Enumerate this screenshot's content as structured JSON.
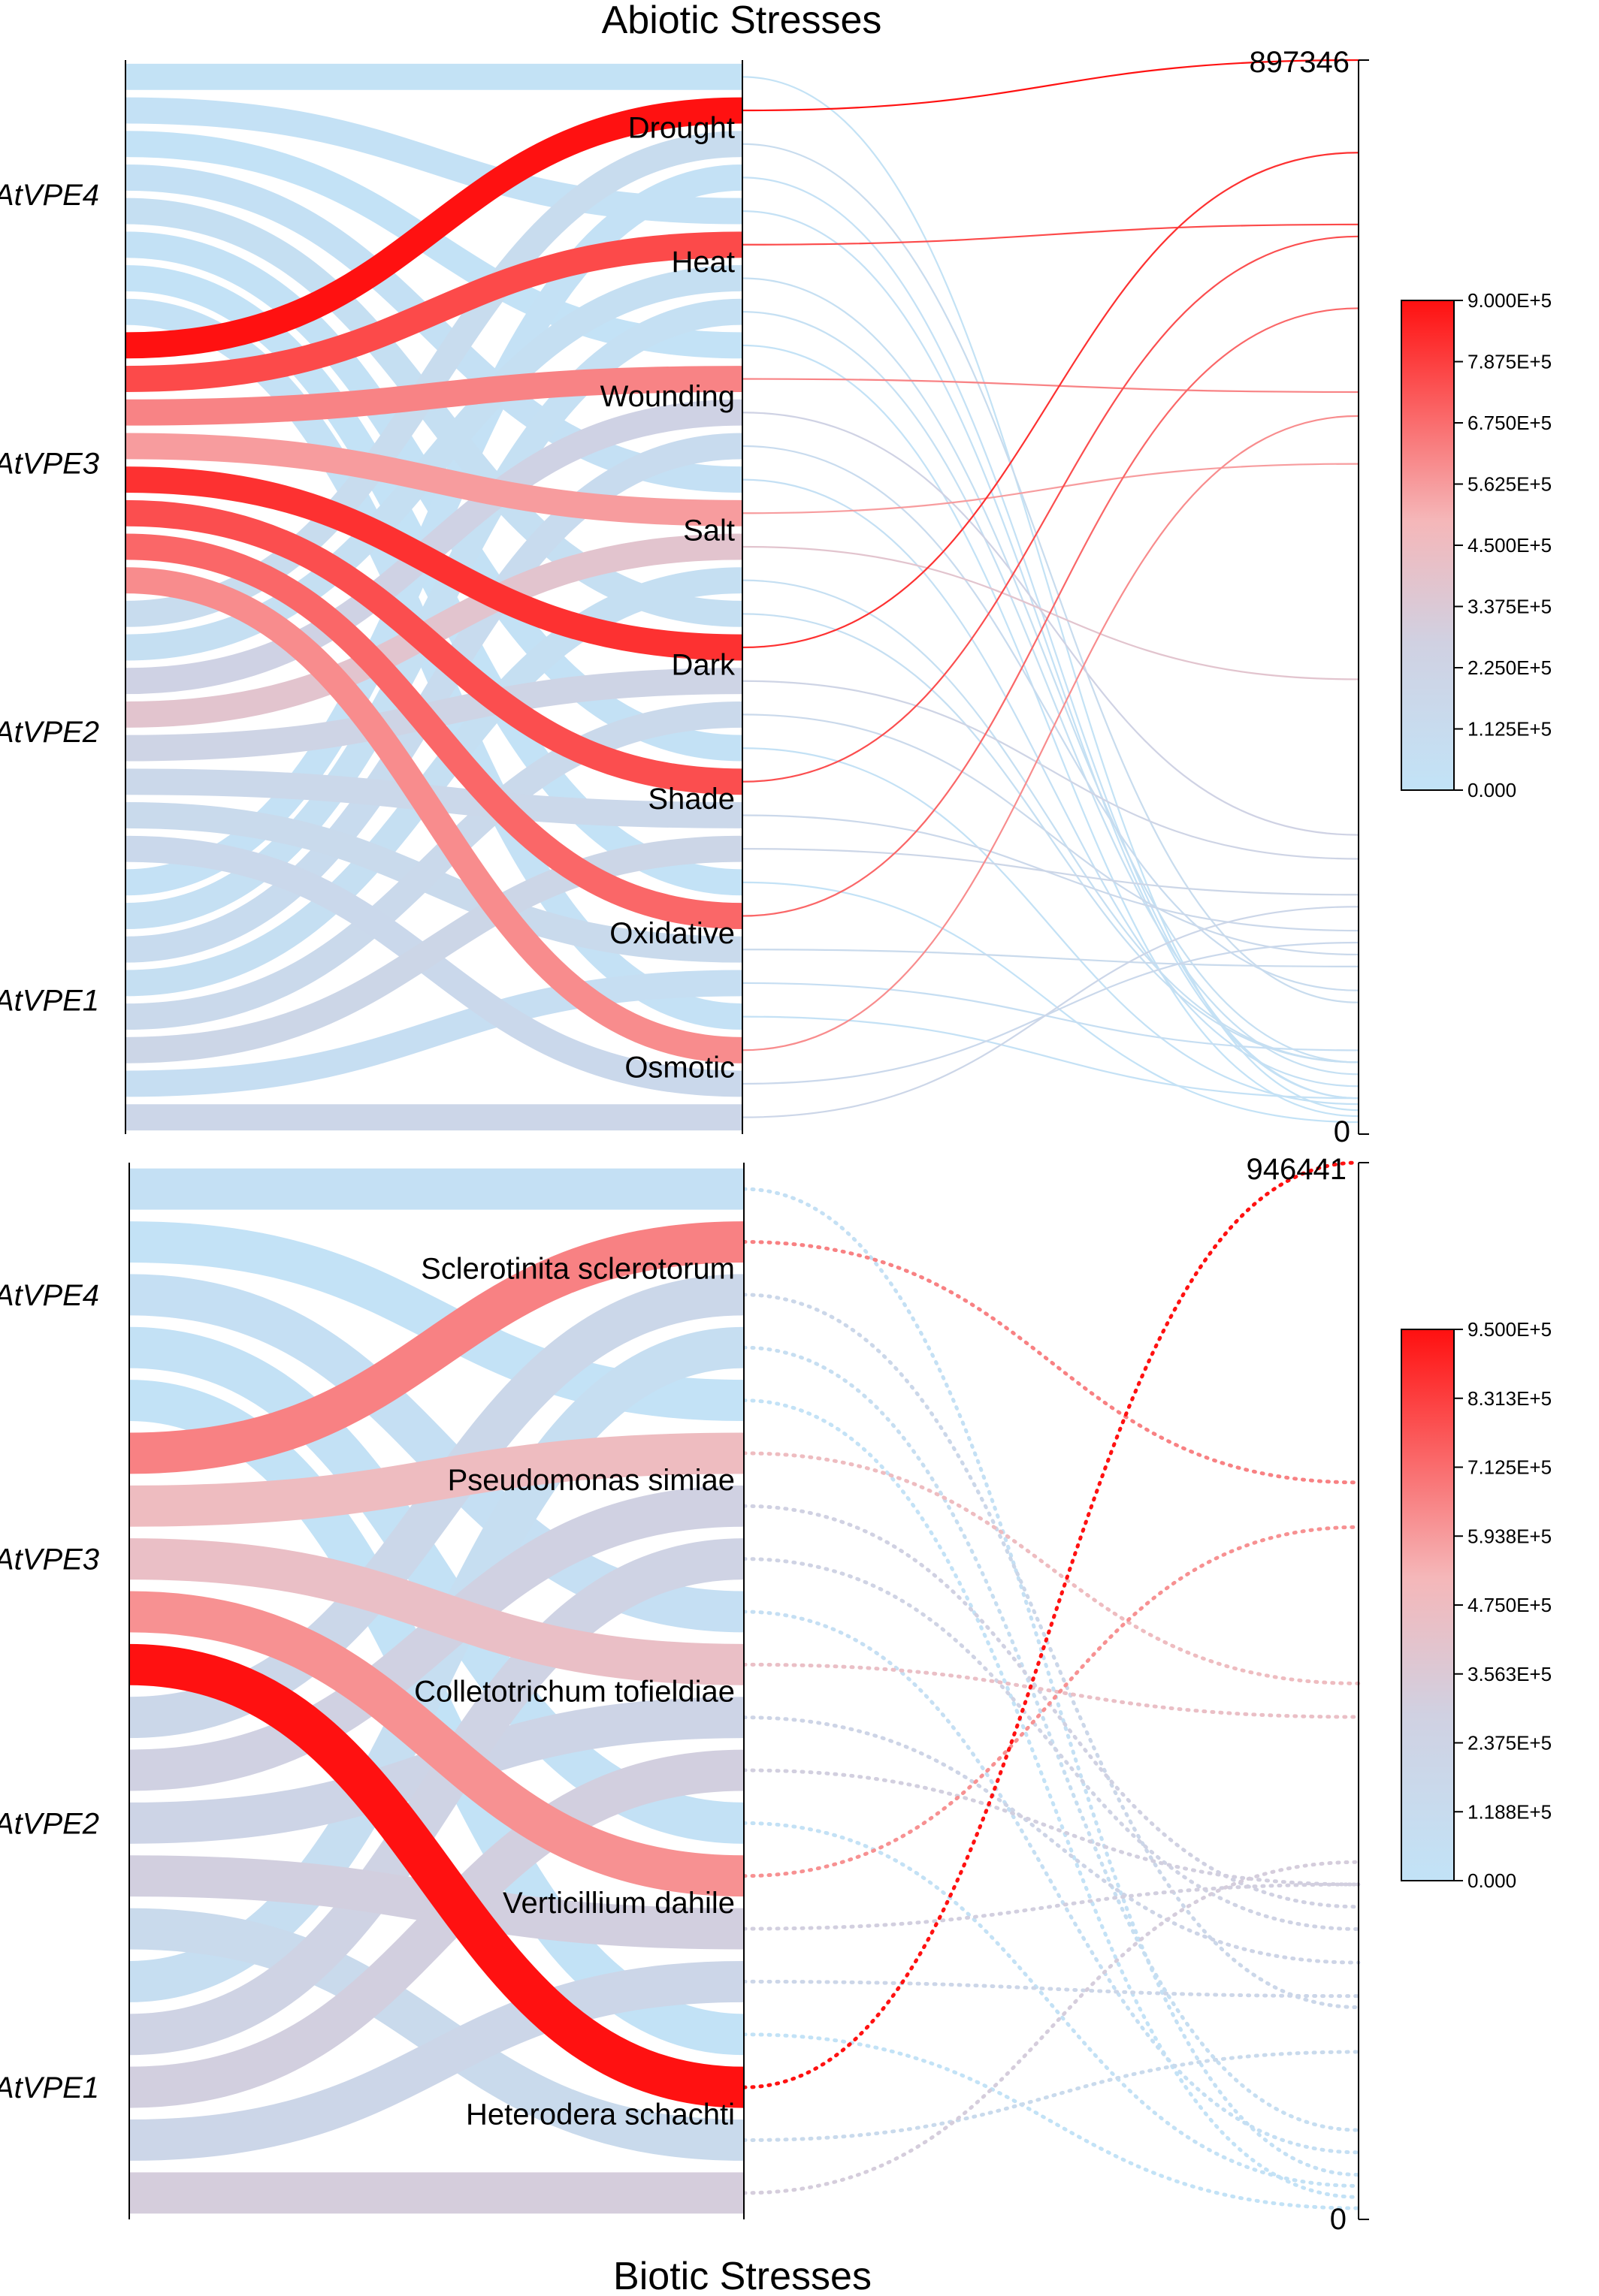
{
  "colors": {
    "low": "#c2e3f7",
    "mid": "#d0d1e2",
    "upper": "#f5b7b9",
    "high": "#ff1010"
  },
  "chart_data": [
    {
      "type": "sankey",
      "title": "Abiotic Stresses",
      "genes": [
        "AtVPE4",
        "AtVPE3",
        "AtVPE2",
        "AtVPE1"
      ],
      "categories": [
        "Drought",
        "Heat",
        "Wounding",
        "Salt",
        "Dark",
        "Shade",
        "Oxidative",
        "Osmotic"
      ],
      "value_axis": {
        "max_label": "897346",
        "min_label": "0",
        "min": 0,
        "max": 897346
      },
      "colorbar": {
        "min": 0,
        "max": 900000,
        "ticks": [
          "9.000E+5",
          "7.875E+5",
          "6.750E+5",
          "5.625E+5",
          "4.500E+5",
          "3.375E+5",
          "2.250E+5",
          "1.125E+5",
          "0.000"
        ]
      },
      "line_style": "solid",
      "values": {
        "AtVPE4": [
          20000,
          30000,
          15000,
          40000,
          60000,
          25000,
          10000,
          30000
        ],
        "AtVPE3": [
          897346,
          760000,
          620000,
          560000,
          820000,
          750000,
          690000,
          600000
        ],
        "AtVPE2": [
          110000,
          60000,
          250000,
          380000,
          230000,
          170000,
          140000,
          160000
        ],
        "AtVPE1": [
          30000,
          50000,
          120000,
          60000,
          150000,
          200000,
          70000,
          190000
        ]
      }
    },
    {
      "type": "sankey",
      "title": "Biotic Stresses",
      "genes": [
        "AtVPE4",
        "AtVPE3",
        "AtVPE2",
        "AtVPE1"
      ],
      "categories": [
        "Sclerotinita sclerotorum",
        "Pseudomonas simiae",
        "Colletotrichum tofieldiae",
        "Verticillium dahile",
        "Heterodera schachti"
      ],
      "value_axis": {
        "max_label": "946441",
        "min_label": "0",
        "min": 0,
        "max": 946441
      },
      "colorbar": {
        "min": 0,
        "max": 950000,
        "ticks": [
          "9.500E+5",
          "8.313E+5",
          "7.125E+5",
          "5.938E+5",
          "4.750E+5",
          "3.563E+5",
          "2.375E+5",
          "1.188E+5",
          "0.000"
        ]
      },
      "line_style": "dotted",
      "values": {
        "AtVPE4": [
          40000,
          20000,
          60000,
          30000,
          10000
        ],
        "AtVPE3": [
          660000,
          480000,
          450000,
          620000,
          946441
        ],
        "AtVPE2": [
          190000,
          280000,
          230000,
          300000,
          150000
        ],
        "AtVPE1": [
          80000,
          260000,
          300000,
          200000,
          320000
        ]
      }
    }
  ]
}
